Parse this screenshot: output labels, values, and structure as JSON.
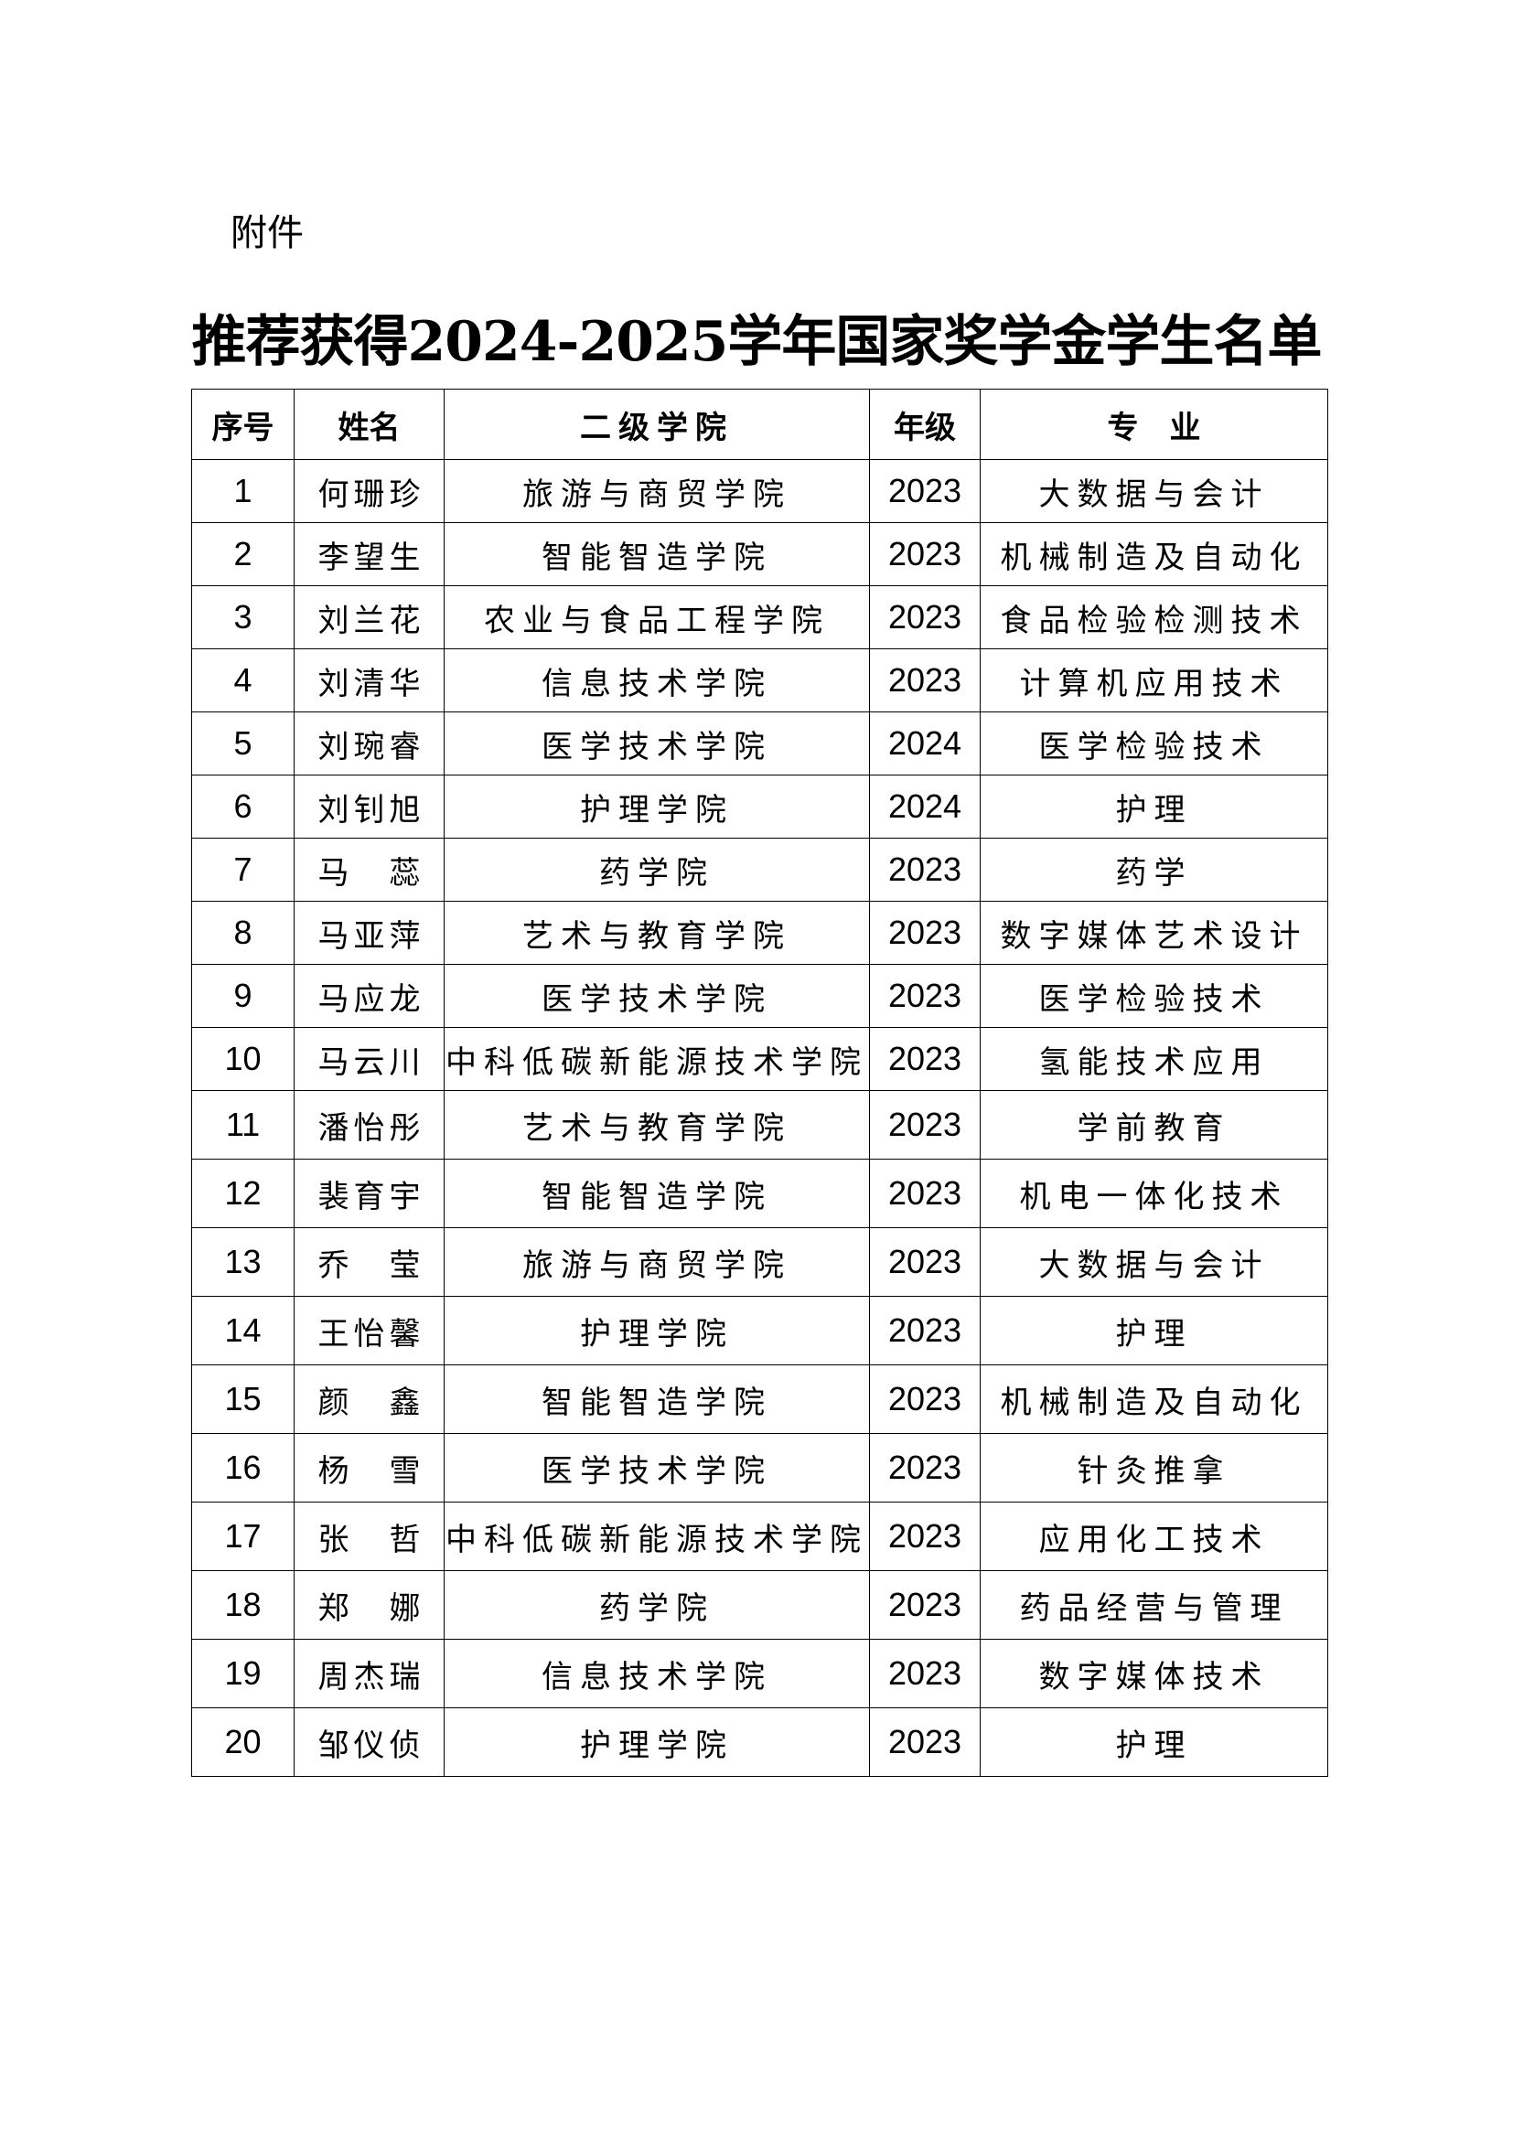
{
  "attachment_label": "附件",
  "title": "推荐获得2024-2025学年国家奖学金学生名单",
  "table": {
    "headers": [
      "序号",
      "姓名",
      "二级学院",
      "年级",
      "专　业"
    ],
    "rows": [
      [
        "1",
        "何珊珍",
        "旅游与商贸学院",
        "2023",
        "大数据与会计"
      ],
      [
        "2",
        "李望生",
        "智能智造学院",
        "2023",
        "机械制造及自动化"
      ],
      [
        "3",
        "刘兰花",
        "农业与食品工程学院",
        "2023",
        "食品检验检测技术"
      ],
      [
        "4",
        "刘清华",
        "信息技术学院",
        "2023",
        "计算机应用技术"
      ],
      [
        "5",
        "刘琬睿",
        "医学技术学院",
        "2024",
        "医学检验技术"
      ],
      [
        "6",
        "刘钊旭",
        "护理学院",
        "2024",
        "护理"
      ],
      [
        "7",
        "马蕊",
        "药学院",
        "2023",
        "药学"
      ],
      [
        "8",
        "马亚萍",
        "艺术与教育学院",
        "2023",
        "数字媒体艺术设计"
      ],
      [
        "9",
        "马应龙",
        "医学技术学院",
        "2023",
        "医学检验技术"
      ],
      [
        "10",
        "马云川",
        "中科低碳新能源技术学院",
        "2023",
        "氢能技术应用"
      ],
      [
        "11",
        "潘怡彤",
        "艺术与教育学院",
        "2023",
        "学前教育"
      ],
      [
        "12",
        "裴育宇",
        "智能智造学院",
        "2023",
        "机电一体化技术"
      ],
      [
        "13",
        "乔莹",
        "旅游与商贸学院",
        "2023",
        "大数据与会计"
      ],
      [
        "14",
        "王怡馨",
        "护理学院",
        "2023",
        "护理"
      ],
      [
        "15",
        "颜鑫",
        "智能智造学院",
        "2023",
        "机械制造及自动化"
      ],
      [
        "16",
        "杨雪",
        "医学技术学院",
        "2023",
        "针灸推拿"
      ],
      [
        "17",
        "张哲",
        "中科低碳新能源技术学院",
        "2023",
        "应用化工技术"
      ],
      [
        "18",
        "郑娜",
        "药学院",
        "2023",
        "药品经营与管理"
      ],
      [
        "19",
        "周杰瑞",
        "信息技术学院",
        "2023",
        "数字媒体技术"
      ],
      [
        "20",
        "邹仪侦",
        "护理学院",
        "2023",
        "护理"
      ]
    ]
  }
}
